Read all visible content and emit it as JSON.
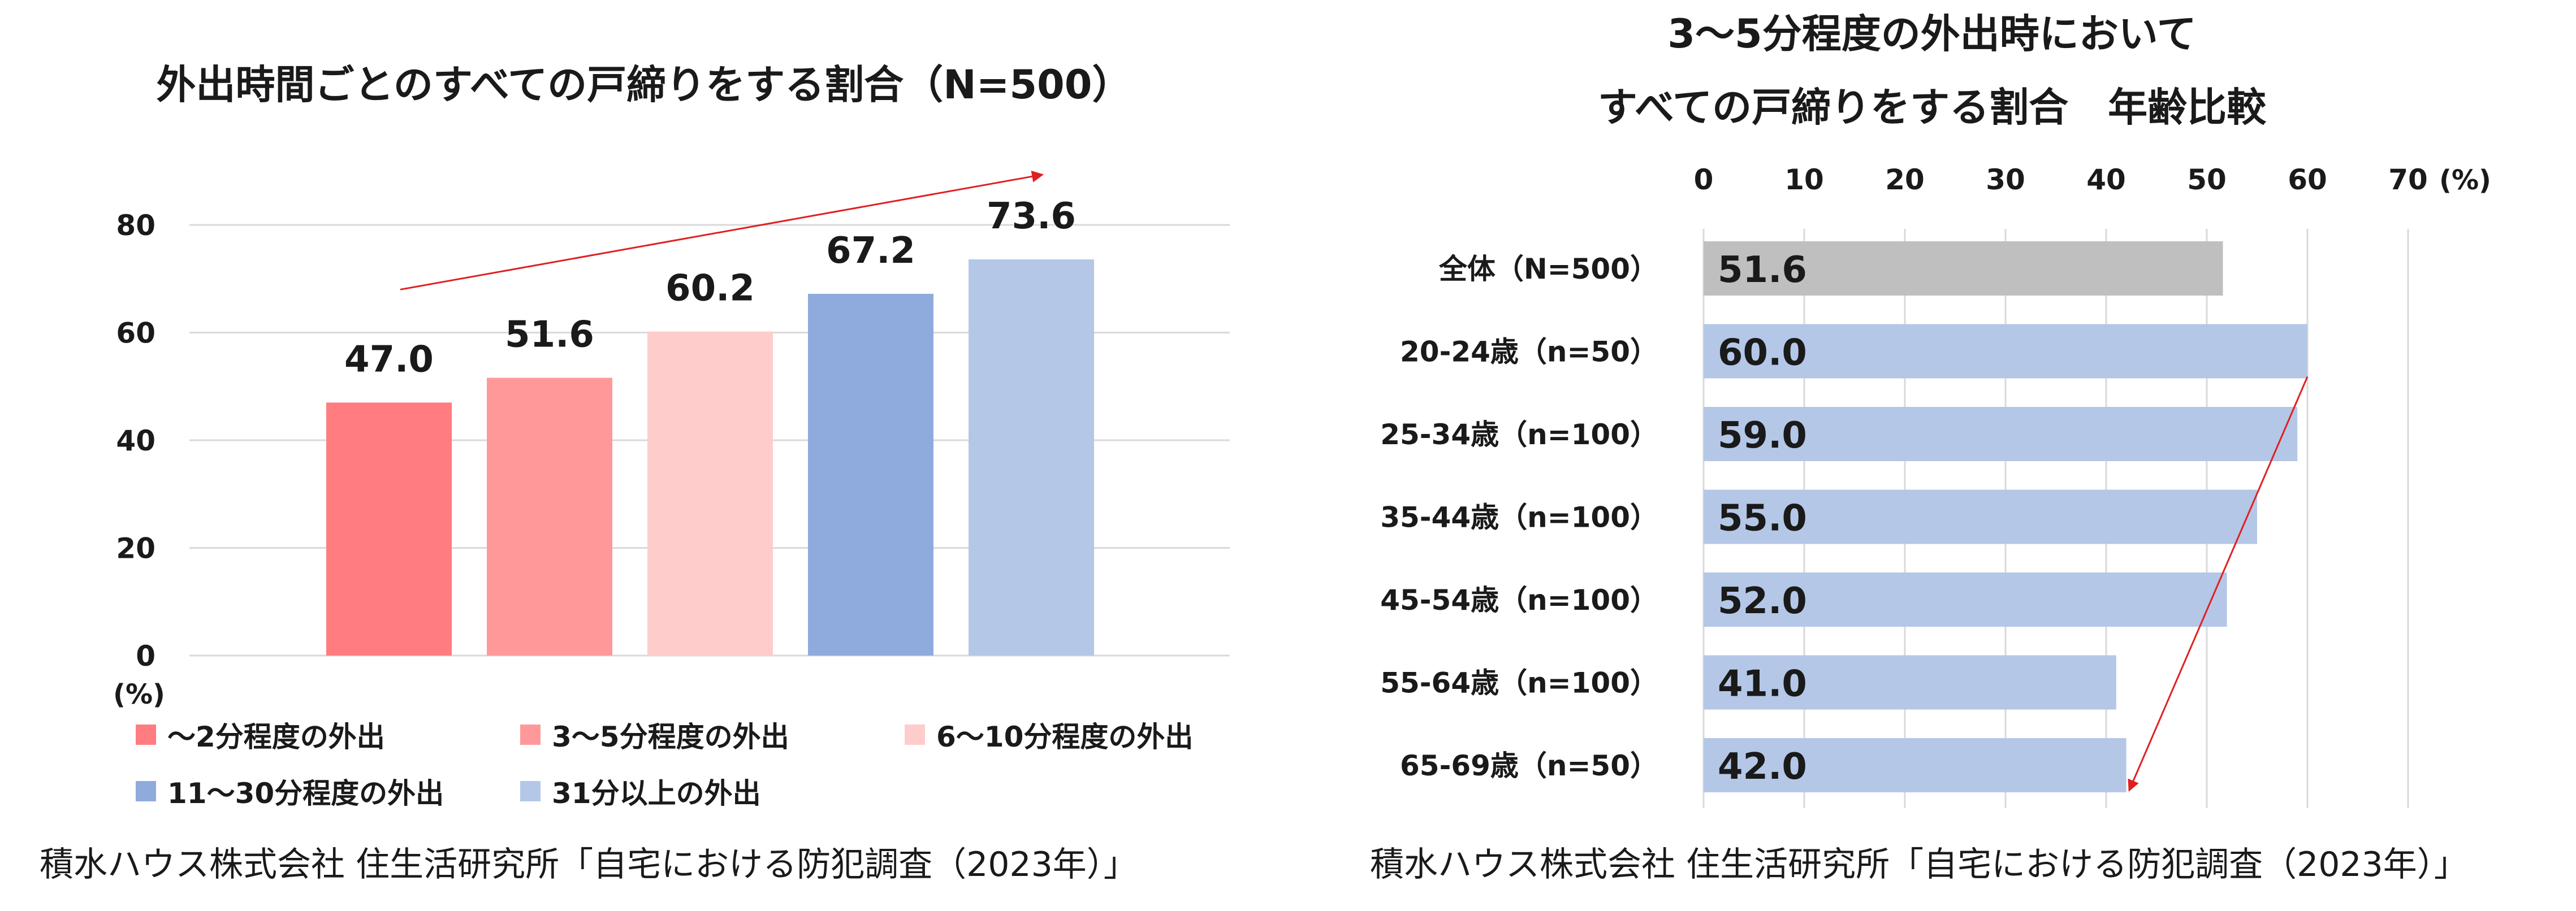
{
  "colors": {
    "bar_pink_dark": "#ff7c80",
    "bar_pink": "#ff9999",
    "bar_pink_light": "#ffcccc",
    "bar_blue": "#8faadc",
    "bar_blue_light": "#b4c7e7",
    "bar_gray": "#bfbfbf",
    "arrow": "#e02020",
    "grid": "#d9d9d9"
  },
  "chart_data": [
    {
      "type": "bar",
      "title": "外出時間ごとのすべての戸締りをする割合（N=500）",
      "categories": [
        "～2分程度の外出",
        "3～5分程度の外出",
        "6～10分程度の外出",
        "11～30分程度の外出",
        "31分以上の外出"
      ],
      "values": [
        47.0,
        51.6,
        60.2,
        67.2,
        73.6
      ],
      "value_labels": [
        "47.0",
        "51.6",
        "60.2",
        "67.2",
        "73.6"
      ],
      "bar_colors": [
        "#ff7c80",
        "#ff9999",
        "#ffcccc",
        "#8faadc",
        "#b4c7e7"
      ],
      "ylim": [
        0,
        80
      ],
      "yticks": [
        "0",
        "20",
        "40",
        "60",
        "80"
      ],
      "yunit": "(%)",
      "grid": true,
      "legend": "bottom",
      "source": "積水ハウス株式会社 住生活研究所「自宅における防犯調査（2023年）」"
    },
    {
      "type": "bar",
      "orientation": "horizontal",
      "title_lines": [
        "3～5分程度の外出時において",
        "すべての戸締りをする割合　年齢比較"
      ],
      "categories": [
        "全体（N=500）",
        "20-24歳（n=50）",
        "25-34歳（n=100）",
        "35-44歳（n=100）",
        "45-54歳（n=100）",
        "55-64歳（n=100）",
        "65-69歳（n=50）"
      ],
      "values": [
        51.6,
        60.0,
        59.0,
        55.0,
        52.0,
        41.0,
        42.0
      ],
      "value_labels": [
        "51.6",
        "60.0",
        "59.0",
        "55.0",
        "52.0",
        "41.0",
        "42.0"
      ],
      "bar_colors": [
        "#bfbfbf",
        "#b4c7e7",
        "#b4c7e7",
        "#b4c7e7",
        "#b4c7e7",
        "#b4c7e7",
        "#b4c7e7"
      ],
      "xlim": [
        0,
        70
      ],
      "xticks": [
        "0",
        "10",
        "20",
        "30",
        "40",
        "50",
        "60",
        "70"
      ],
      "xunit": "(%)",
      "grid": true,
      "source": "積水ハウス株式会社 住生活研究所「自宅における防犯調査（2023年）」"
    }
  ]
}
